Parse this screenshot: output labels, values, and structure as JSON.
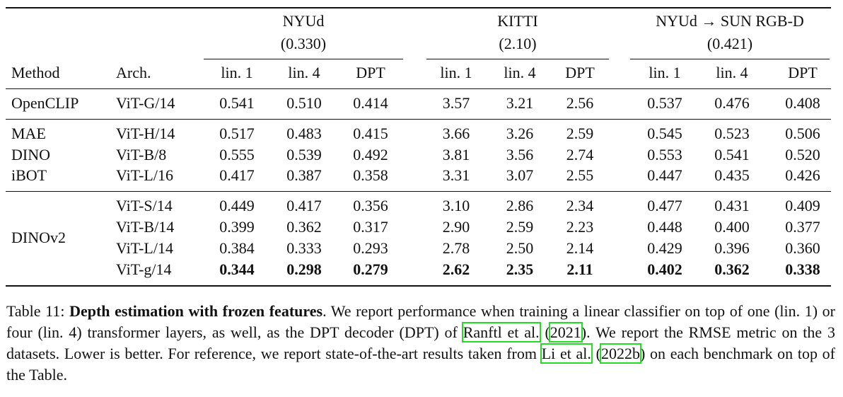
{
  "table": {
    "groups": [
      {
        "name": "NYUd",
        "sota": "(0.330)"
      },
      {
        "name": "KITTI",
        "sota": "(2.10)"
      },
      {
        "name": "NYUd → SUN RGB-D",
        "sota": "(0.421)"
      }
    ],
    "header": [
      "Method",
      "Arch.",
      "lin. 1",
      "lin. 4",
      "DPT",
      "lin. 1",
      "lin. 4",
      "DPT",
      "lin. 1",
      "lin. 4",
      "DPT"
    ],
    "sections": [
      {
        "rows": [
          {
            "method": "OpenCLIP",
            "arch": "ViT-G/14",
            "values": [
              "0.541",
              "0.510",
              "0.414",
              "3.57",
              "3.21",
              "2.56",
              "0.537",
              "0.476",
              "0.408"
            ]
          }
        ]
      },
      {
        "rows": [
          {
            "method": "MAE",
            "arch": "ViT-H/14",
            "values": [
              "0.517",
              "0.483",
              "0.415",
              "3.66",
              "3.26",
              "2.59",
              "0.545",
              "0.523",
              "0.506"
            ]
          },
          {
            "method": "DINO",
            "arch": "ViT-B/8",
            "values": [
              "0.555",
              "0.539",
              "0.492",
              "3.81",
              "3.56",
              "2.74",
              "0.553",
              "0.541",
              "0.520"
            ]
          },
          {
            "method": "iBOT",
            "arch": "ViT-L/16",
            "values": [
              "0.417",
              "0.387",
              "0.358",
              "3.31",
              "3.07",
              "2.55",
              "0.447",
              "0.435",
              "0.426"
            ]
          }
        ]
      },
      {
        "method": "DINOv2",
        "rows": [
          {
            "arch": "ViT-S/14",
            "values": [
              "0.449",
              "0.417",
              "0.356",
              "3.10",
              "2.86",
              "2.34",
              "0.477",
              "0.431",
              "0.409"
            ]
          },
          {
            "arch": "ViT-B/14",
            "values": [
              "0.399",
              "0.362",
              "0.317",
              "2.90",
              "2.59",
              "2.23",
              "0.448",
              "0.400",
              "0.377"
            ]
          },
          {
            "arch": "ViT-L/14",
            "values": [
              "0.384",
              "0.333",
              "0.293",
              "2.78",
              "2.50",
              "2.14",
              "0.429",
              "0.396",
              "0.360"
            ]
          },
          {
            "arch": "ViT-g/14",
            "bold": true,
            "values": [
              "0.344",
              "0.298",
              "0.279",
              "2.62",
              "2.35",
              "2.11",
              "0.402",
              "0.362",
              "0.338"
            ]
          }
        ]
      }
    ]
  },
  "caption": {
    "label": "Table 11:",
    "parts": [
      {
        "text": "Depth estimation with frozen features",
        "bold": true
      },
      {
        "text": ". We report performance when training a linear classifier on top of one (lin. 1) or four (lin. 4) transformer layers, as well, as the DPT decoder (DPT) of "
      },
      {
        "text": "Ranftl et al.",
        "link": true
      },
      {
        "text": " ("
      },
      {
        "text": "2021",
        "link": true
      },
      {
        "text": "). We report the RMSE metric on the 3 datasets. Lower is better. For reference, we report state-of-the-art results taken from "
      },
      {
        "text": "Li et al.",
        "link": true
      },
      {
        "text": " ("
      },
      {
        "text": "2022b",
        "link": true
      },
      {
        "text": ") on each benchmark on top of the Table."
      }
    ]
  }
}
